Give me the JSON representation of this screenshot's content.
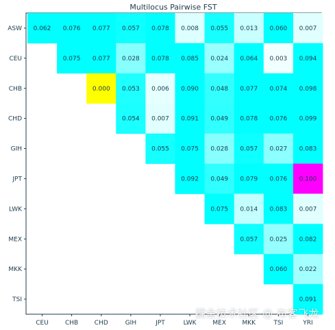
{
  "chart_data": {
    "type": "heatmap",
    "title": "Multilocus Pairwise FST",
    "row_labels": [
      "ASW",
      "CEU",
      "CHB",
      "CHD",
      "GIH",
      "JPT",
      "LWK",
      "MEX",
      "MKK",
      "TSI"
    ],
    "column_labels": [
      "CEU",
      "CHB",
      "CHD",
      "GIH",
      "JPT",
      "LWK",
      "MEX",
      "MKK",
      "TSI",
      "YRI"
    ],
    "values": [
      [
        "0.062",
        "0.076",
        "0.077",
        "0.057",
        "0.078",
        "0.008",
        "0.055",
        "0.013",
        "0.060",
        "0.007"
      ],
      [
        null,
        "0.075",
        "0.077",
        "0.028",
        "0.078",
        "0.085",
        "0.024",
        "0.064",
        "0.003",
        "0.094"
      ],
      [
        null,
        null,
        "0.000",
        "0.053",
        "0.006",
        "0.090",
        "0.048",
        "0.077",
        "0.074",
        "0.098"
      ],
      [
        null,
        null,
        null,
        "0.054",
        "0.007",
        "0.091",
        "0.049",
        "0.078",
        "0.076",
        "0.099"
      ],
      [
        null,
        null,
        null,
        null,
        "0.055",
        "0.075",
        "0.028",
        "0.057",
        "0.027",
        "0.083"
      ],
      [
        null,
        null,
        null,
        null,
        null,
        "0.092",
        "0.049",
        "0.079",
        "0.076",
        "0.100"
      ],
      [
        null,
        null,
        null,
        null,
        null,
        null,
        "0.075",
        "0.014",
        "0.083",
        "0.007"
      ],
      [
        null,
        null,
        null,
        null,
        null,
        null,
        null,
        "0.057",
        "0.025",
        "0.082"
      ],
      [
        null,
        null,
        null,
        null,
        null,
        null,
        null,
        null,
        "0.060",
        "0.022"
      ],
      [
        null,
        null,
        null,
        null,
        null,
        null,
        null,
        null,
        null,
        "0.091"
      ]
    ],
    "highlight": {
      "min_color": "#ffff00",
      "max_color": "#ff00ff"
    },
    "colors": {
      "low": "#ffffff",
      "high": "#00ffff",
      "axis": "#1b3a4b"
    }
  },
  "watermark": "掘金技术社区 @ 布客飞龙"
}
